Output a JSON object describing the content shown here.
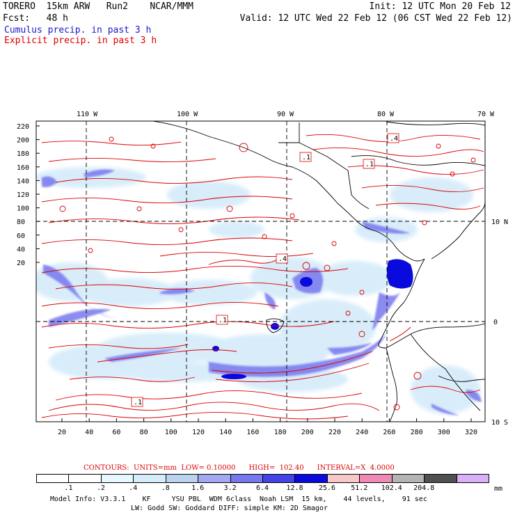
{
  "header": {
    "model": "TORERO  15km ARW   Run2    NCAR/MMM",
    "init": "Init: 12 UTC Mon 20 Feb 12",
    "fcst": "Fcst:   48 h",
    "valid": "Valid: 12 UTC Wed 22 Feb 12 (06 CST Wed 22 Feb 12)",
    "legend_cumulus": "Cumulus precip. in past 3 h",
    "legend_explicit": "Explicit precip. in past 3 h"
  },
  "map": {
    "lon_labels": [
      "110 W",
      "100 W",
      "90 W",
      "80 W",
      "70 W"
    ],
    "lat_labels": [
      "10 N",
      "0",
      "10 S"
    ],
    "y_ticks": [
      "220",
      "200",
      "180",
      "160",
      "140",
      "120",
      "100",
      "80",
      "60",
      "40",
      "20"
    ],
    "x_ticks": [
      "20",
      "40",
      "60",
      "80",
      "100",
      "120",
      "140",
      "160",
      "180",
      "200",
      "220",
      "240",
      "260",
      "280",
      "300",
      "320"
    ],
    "contour_labels": [
      ".4",
      ".1",
      ".1",
      ".4",
      ".1",
      ".1"
    ]
  },
  "contours": {
    "text": "CONTOURS:  UNITS=mm  LOW= 0.10000      HIGH=  102.40      INTERVAL=X  4.0000"
  },
  "colorbar": {
    "unit": "mm",
    "labels": [
      ".1",
      ".2",
      ".4",
      ".8",
      "1.6",
      "3.2",
      "6.4",
      "12.8",
      "25.6",
      "51.2",
      "102.4",
      "204.8"
    ],
    "colors": [
      "#ffffff",
      "#ffffff",
      "#e6f7ff",
      "#d6ecfa",
      "#bcd3f0",
      "#a3a8f0",
      "#7777ee",
      "#4444e6",
      "#0a0adc",
      "#f8c8c8",
      "#f08ab4",
      "#b4b4b4",
      "#505050",
      "#d8b0f8"
    ]
  },
  "footer": {
    "line1": "Model Info: V3.3.1    KF     YSU PBL  WDM 6class  Noah LSM  15 km,    44 levels,    91 sec",
    "line2": "LW: Godd SW: Goddard DIFF: simple KM: 2D Smagor"
  }
}
